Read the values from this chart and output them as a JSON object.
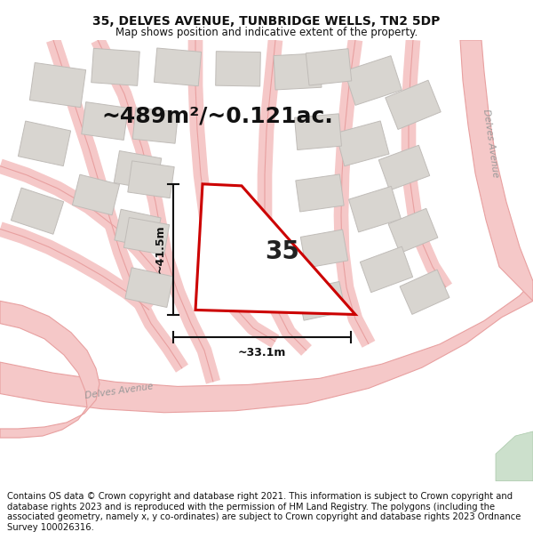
{
  "title_line1": "35, DELVES AVENUE, TUNBRIDGE WELLS, TN2 5DP",
  "title_line2": "Map shows position and indicative extent of the property.",
  "area_text": "~489m²/~0.121ac.",
  "label_35": "35",
  "dim_vertical": "~41.5m",
  "dim_horizontal": "~33.1m",
  "footer_text": "Contains OS data © Crown copyright and database right 2021. This information is subject to Crown copyright and database rights 2023 and is reproduced with the permission of HM Land Registry. The polygons (including the associated geometry, namely x, y co-ordinates) are subject to Crown copyright and database rights 2023 Ordnance Survey 100026316.",
  "map_bg": "#f2ede8",
  "road_fill": "#f5c8c8",
  "road_edge": "#e8a0a0",
  "plot_fill": "#ffffff",
  "plot_edge": "#cc0000",
  "building_fill": "#d8d5d0",
  "building_edge": "#c0bcb8",
  "green_fill": "#cce0cc",
  "dim_color": "#111111",
  "title_fontsize": 10,
  "subtitle_fontsize": 8.5,
  "area_fontsize": 18,
  "label_fontsize": 20,
  "footer_fontsize": 7.2
}
